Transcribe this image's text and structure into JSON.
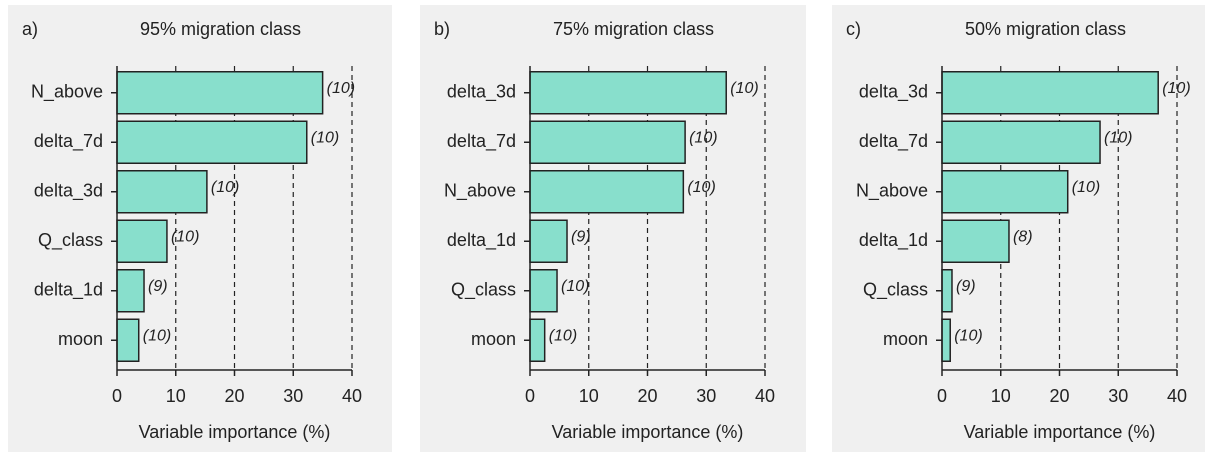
{
  "chart_data": [
    {
      "type": "bar",
      "orientation": "horizontal",
      "panel_label": "a)",
      "title": "95% migration class",
      "categories": [
        "N_above",
        "delta_7d",
        "delta_3d",
        "Q_class",
        "delta_1d",
        "moon"
      ],
      "values": [
        35.0,
        32.3,
        15.3,
        8.5,
        4.6,
        3.7
      ],
      "bar_annotations": [
        "(10)",
        "(10)",
        "(10)",
        "(10)",
        "(9)",
        "(10)"
      ],
      "color": "#88dfcc",
      "xlabel": "Variable importance (%)",
      "xlim": [
        0,
        40
      ],
      "xticks": [
        0,
        10,
        20,
        30,
        40
      ],
      "grid": true
    },
    {
      "type": "bar",
      "orientation": "horizontal",
      "panel_label": "b)",
      "title": "75% migration class",
      "categories": [
        "delta_3d",
        "delta_7d",
        "N_above",
        "delta_1d",
        "Q_class",
        "moon"
      ],
      "values": [
        33.4,
        26.4,
        26.1,
        6.3,
        4.6,
        2.5
      ],
      "bar_annotations": [
        "(10)",
        "(10)",
        "(10)",
        "(9)",
        "(10)",
        "(10)"
      ],
      "color": "#88dfcc",
      "xlabel": "Variable importance (%)",
      "xlim": [
        0,
        40
      ],
      "xticks": [
        0,
        10,
        20,
        30,
        40
      ],
      "grid": true
    },
    {
      "type": "bar",
      "orientation": "horizontal",
      "panel_label": "c)",
      "title": "50% migration class",
      "categories": [
        "delta_3d",
        "delta_7d",
        "N_above",
        "delta_1d",
        "Q_class",
        "moon"
      ],
      "values": [
        36.8,
        26.9,
        21.4,
        11.4,
        1.7,
        1.4
      ],
      "bar_annotations": [
        "(10)",
        "(10)",
        "(10)",
        "(8)",
        "(9)",
        "(10)"
      ],
      "color": "#88dfcc",
      "xlabel": "Variable importance (%)",
      "xlim": [
        0,
        40
      ],
      "xticks": [
        0,
        10,
        20,
        30,
        40
      ],
      "grid": true
    }
  ]
}
